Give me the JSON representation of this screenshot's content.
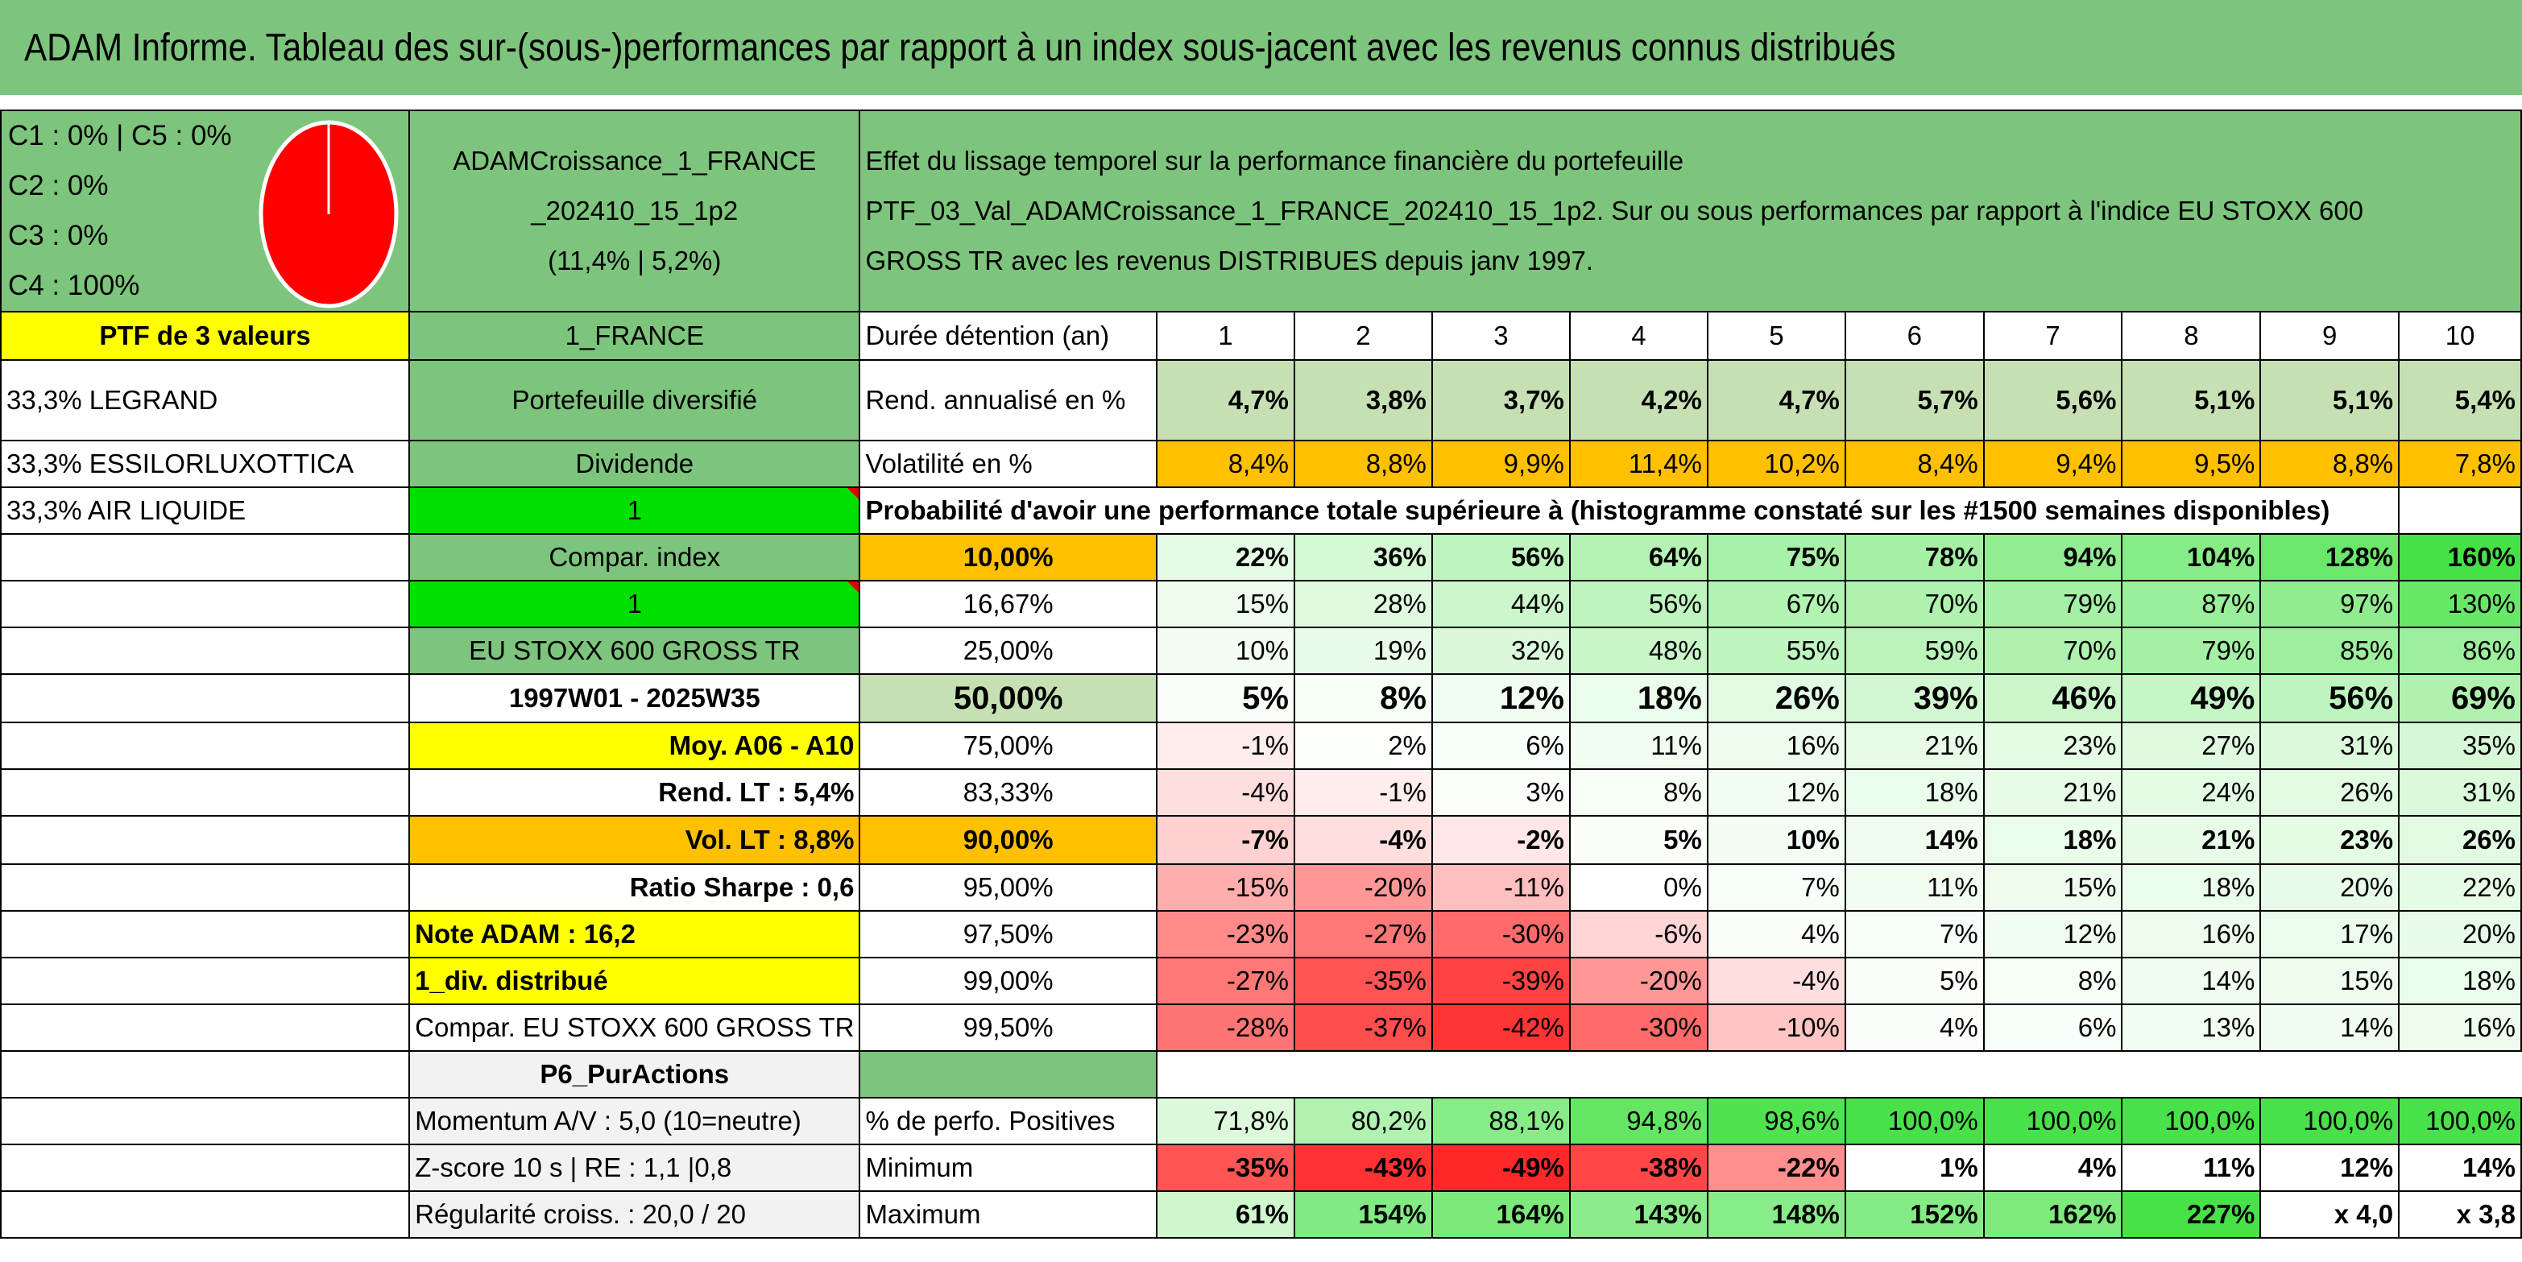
{
  "title": "ADAM Informe. Tableau des sur-(sous-)performances par rapport à un index sous-jacent avec les revenus connus distribués",
  "colors": {
    "header_green": "#7dc57d",
    "light_green": "#c6e0b4",
    "bright_green": "#00e000",
    "orange": "#ffc000",
    "yellow": "#ffff00",
    "red_text": "#e00000"
  },
  "allocation": {
    "c1_c5": "C1 : 0% | C5 : 0%",
    "c2": "C2 : 0%",
    "c3": "C3 : 0%",
    "c4": "C4 : 100%",
    "pie_color": "#ff0000"
  },
  "portfolio": {
    "name_line1": "ADAMCroissance_1_FRANCE",
    "name_line2": "_202410_15_1p2",
    "name_line3": "(11,4% | 5,2%)",
    "desc_line1": "Effet du lissage temporel sur la performance financière du portefeuille",
    "desc_line2": "PTF_03_Val_ADAMCroissance_1_FRANCE_202410_15_1p2. Sur ou sous performances par rapport à l'indice EU STOXX 600",
    "desc_line3": "GROSS TR avec les revenus DISTRIBUES depuis janv 1997."
  },
  "left": {
    "ptf_label": "PTF de 3 valeurs",
    "holdings": [
      "33,3% LEGRAND",
      "33,3% ESSILORLUXOTTICA",
      "33,3% AIR LIQUIDE"
    ],
    "region": "1_FRANCE",
    "type": "Portefeuille diversifié",
    "dividend": "Dividende",
    "dividend_value": "1",
    "compar_index": "Compar. index",
    "compar_value": "1",
    "index_name": "EU STOXX 600 GROSS TR",
    "period": "1997W01 - 2025W35",
    "moy": "Moy. A06 - A10",
    "rend_lt": "Rend. LT : 5,4%",
    "vol_lt": "Vol. LT : 8,8%",
    "sharpe": "Ratio Sharpe : 0,6",
    "note": "Note ADAM : 16,2",
    "div_distrib": "1_div. distribué",
    "compar_full": "Compar. EU STOXX 600 GROSS TR",
    "purity": "P6_PurActions",
    "momentum": "Momentum A/V : 5,0 (10=neutre)",
    "zscore": "Z-score 10 s | RE : 1,1 |0,8",
    "regularite": "Régularité croiss. : 20,0 / 20"
  },
  "table": {
    "duree_label": "Durée détention (an)",
    "years": [
      "1",
      "2",
      "3",
      "4",
      "5",
      "6",
      "7",
      "8",
      "9",
      "10"
    ],
    "rend_label": "Rend. annualisé en %",
    "rend": [
      "4,7%",
      "3,8%",
      "3,7%",
      "4,2%",
      "4,7%",
      "5,7%",
      "5,6%",
      "5,1%",
      "5,1%",
      "5,4%"
    ],
    "vol_label": "Volatilité en %",
    "vol": [
      "8,4%",
      "8,8%",
      "9,9%",
      "11,4%",
      "10,2%",
      "8,4%",
      "9,4%",
      "9,5%",
      "8,8%",
      "7,8%"
    ],
    "prob_label": "Probabilité d'avoir une performance totale supérieure à (histogramme constaté sur les #1500 semaines disponibles)",
    "quantiles": [
      {
        "q": "10,00%",
        "v": [
          "22%",
          "36%",
          "56%",
          "64%",
          "75%",
          "78%",
          "94%",
          "104%",
          "128%",
          "160%"
        ]
      },
      {
        "q": "16,67%",
        "v": [
          "15%",
          "28%",
          "44%",
          "56%",
          "67%",
          "70%",
          "79%",
          "87%",
          "97%",
          "130%"
        ]
      },
      {
        "q": "25,00%",
        "v": [
          "10%",
          "19%",
          "32%",
          "48%",
          "55%",
          "59%",
          "70%",
          "79%",
          "85%",
          "86%"
        ]
      },
      {
        "q": "50,00%",
        "v": [
          "5%",
          "8%",
          "12%",
          "18%",
          "26%",
          "39%",
          "46%",
          "49%",
          "56%",
          "69%"
        ]
      },
      {
        "q": "75,00%",
        "v": [
          "-1%",
          "2%",
          "6%",
          "11%",
          "16%",
          "21%",
          "23%",
          "27%",
          "31%",
          "35%"
        ]
      },
      {
        "q": "83,33%",
        "v": [
          "-4%",
          "-1%",
          "3%",
          "8%",
          "12%",
          "18%",
          "21%",
          "24%",
          "26%",
          "31%"
        ]
      },
      {
        "q": "90,00%",
        "v": [
          "-7%",
          "-4%",
          "-2%",
          "5%",
          "10%",
          "14%",
          "18%",
          "21%",
          "23%",
          "26%"
        ]
      },
      {
        "q": "95,00%",
        "v": [
          "-15%",
          "-20%",
          "-11%",
          "0%",
          "7%",
          "11%",
          "15%",
          "18%",
          "20%",
          "22%"
        ]
      },
      {
        "q": "97,50%",
        "v": [
          "-23%",
          "-27%",
          "-30%",
          "-6%",
          "4%",
          "7%",
          "12%",
          "16%",
          "17%",
          "20%"
        ]
      },
      {
        "q": "99,00%",
        "v": [
          "-27%",
          "-35%",
          "-39%",
          "-20%",
          "-4%",
          "5%",
          "8%",
          "14%",
          "15%",
          "18%"
        ]
      },
      {
        "q": "99,50%",
        "v": [
          "-28%",
          "-37%",
          "-42%",
          "-30%",
          "-10%",
          "4%",
          "6%",
          "13%",
          "14%",
          "16%"
        ]
      }
    ],
    "pos_label": "% de perfo. Positives",
    "pos": [
      "71,8%",
      "80,2%",
      "88,1%",
      "94,8%",
      "98,6%",
      "100,0%",
      "100,0%",
      "100,0%",
      "100,0%",
      "100,0%"
    ],
    "min_label": "Minimum",
    "min": [
      "-35%",
      "-43%",
      "-49%",
      "-38%",
      "-22%",
      "1%",
      "4%",
      "11%",
      "12%",
      "14%"
    ],
    "max_label": "Maximum",
    "max": [
      "61%",
      "154%",
      "164%",
      "143%",
      "148%",
      "152%",
      "162%",
      "227%",
      "x 4,0",
      "x 3,8"
    ]
  }
}
